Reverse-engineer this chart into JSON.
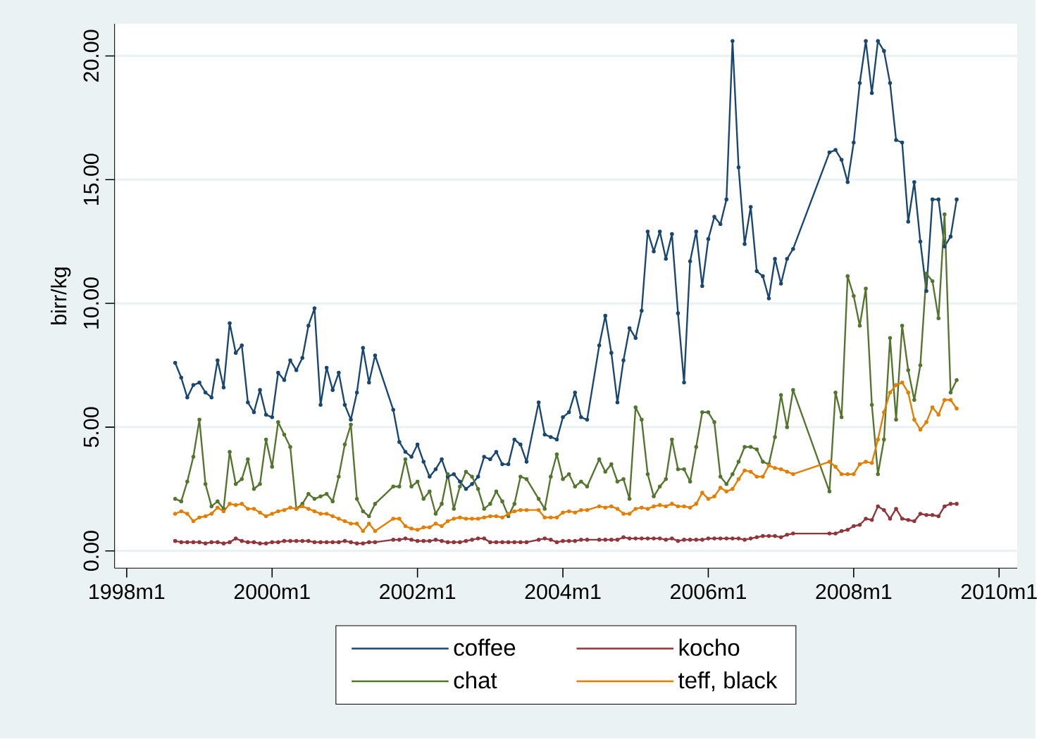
{
  "chart_data": {
    "type": "line",
    "ylabel": "birr/kg",
    "x": [
      "1998-09",
      "1998-10",
      "1998-11",
      "1998-12",
      "1999-01",
      "1999-02",
      "1999-03",
      "1999-04",
      "1999-05",
      "1999-06",
      "1999-07",
      "1999-08",
      "1999-09",
      "1999-10",
      "1999-11",
      "1999-12",
      "2000-01",
      "2000-02",
      "2000-03",
      "2000-04",
      "2000-05",
      "2000-06",
      "2000-07",
      "2000-08",
      "2000-09",
      "2000-10",
      "2000-11",
      "2000-12",
      "2001-01",
      "2001-02",
      "2001-03",
      "2001-04",
      "2001-05",
      "2001-06",
      "2001-09",
      "2001-10",
      "2001-11",
      "2001-12",
      "2002-01",
      "2002-02",
      "2002-03",
      "2002-04",
      "2002-05",
      "2002-06",
      "2002-07",
      "2002-08",
      "2002-09",
      "2002-10",
      "2002-11",
      "2002-12",
      "2003-01",
      "2003-02",
      "2003-03",
      "2003-04",
      "2003-05",
      "2003-06",
      "2003-07",
      "2003-09",
      "2003-10",
      "2003-11",
      "2003-12",
      "2004-01",
      "2004-02",
      "2004-03",
      "2004-04",
      "2004-05",
      "2004-07",
      "2004-08",
      "2004-09",
      "2004-10",
      "2004-11",
      "2004-12",
      "2005-01",
      "2005-02",
      "2005-03",
      "2005-04",
      "2005-05",
      "2005-06",
      "2005-07",
      "2005-08",
      "2005-09",
      "2005-10",
      "2005-11",
      "2005-12",
      "2006-01",
      "2006-02",
      "2006-03",
      "2006-04",
      "2006-05",
      "2006-06",
      "2006-07",
      "2006-08",
      "2006-09",
      "2006-10",
      "2006-11",
      "2006-12",
      "2007-01",
      "2007-02",
      "2007-03",
      "2007-09",
      "2007-10",
      "2007-11",
      "2007-12",
      "2008-01",
      "2008-02",
      "2008-03",
      "2008-04",
      "2008-05",
      "2008-06",
      "2008-07",
      "2008-08",
      "2008-09",
      "2008-10",
      "2008-11",
      "2008-12",
      "2009-01",
      "2009-02",
      "2009-03",
      "2009-04",
      "2009-05",
      "2009-06"
    ],
    "series": [
      {
        "name": "coffee",
        "color": "#1a476f",
        "values": [
          7.6,
          7.0,
          6.2,
          6.7,
          6.8,
          6.4,
          6.2,
          7.7,
          6.6,
          9.2,
          8.0,
          8.3,
          6.0,
          5.6,
          6.5,
          5.5,
          5.4,
          7.2,
          6.9,
          7.7,
          7.3,
          7.8,
          9.1,
          9.8,
          5.9,
          7.4,
          6.5,
          7.2,
          5.9,
          5.3,
          6.4,
          8.2,
          6.8,
          7.9,
          5.7,
          4.4,
          4.0,
          3.8,
          4.3,
          3.6,
          3.0,
          3.3,
          3.7,
          3.0,
          3.1,
          2.8,
          2.5,
          2.7,
          3.0,
          3.8,
          3.7,
          4.0,
          3.5,
          3.5,
          4.5,
          4.3,
          3.6,
          6.0,
          4.7,
          4.6,
          4.5,
          5.4,
          5.6,
          6.4,
          5.4,
          5.3,
          8.3,
          9.5,
          8.0,
          6.0,
          7.7,
          9.0,
          8.6,
          9.7,
          12.9,
          12.1,
          12.9,
          11.8,
          12.8,
          9.6,
          6.8,
          11.7,
          12.9,
          10.7,
          12.6,
          13.5,
          13.2,
          14.2,
          20.6,
          15.5,
          12.4,
          13.9,
          11.3,
          11.1,
          10.2,
          11.8,
          10.8,
          11.8,
          12.2,
          16.1,
          16.2,
          15.8,
          14.9,
          16.5,
          18.9,
          20.6,
          18.5,
          20.6,
          20.2,
          18.9,
          16.6,
          16.5,
          13.3,
          14.9,
          12.5,
          10.5,
          14.2,
          14.2,
          12.3,
          12.7,
          14.2
        ]
      },
      {
        "name": "kocho",
        "color": "#90353b",
        "values": [
          0.4,
          0.35,
          0.35,
          0.35,
          0.35,
          0.3,
          0.35,
          0.35,
          0.3,
          0.35,
          0.5,
          0.4,
          0.35,
          0.35,
          0.3,
          0.3,
          0.35,
          0.35,
          0.4,
          0.4,
          0.4,
          0.4,
          0.4,
          0.35,
          0.35,
          0.35,
          0.35,
          0.35,
          0.4,
          0.35,
          0.3,
          0.3,
          0.35,
          0.35,
          0.45,
          0.45,
          0.5,
          0.45,
          0.4,
          0.4,
          0.4,
          0.45,
          0.4,
          0.35,
          0.35,
          0.35,
          0.4,
          0.45,
          0.5,
          0.5,
          0.35,
          0.35,
          0.35,
          0.35,
          0.35,
          0.35,
          0.35,
          0.45,
          0.5,
          0.45,
          0.35,
          0.4,
          0.4,
          0.4,
          0.45,
          0.45,
          0.45,
          0.45,
          0.45,
          0.45,
          0.55,
          0.5,
          0.5,
          0.5,
          0.5,
          0.5,
          0.5,
          0.45,
          0.5,
          0.4,
          0.45,
          0.45,
          0.45,
          0.45,
          0.5,
          0.5,
          0.5,
          0.5,
          0.5,
          0.5,
          0.45,
          0.5,
          0.55,
          0.6,
          0.6,
          0.6,
          0.55,
          0.65,
          0.7,
          0.7,
          0.7,
          0.8,
          0.85,
          1.0,
          1.05,
          1.3,
          1.25,
          1.8,
          1.65,
          1.3,
          1.7,
          1.3,
          1.25,
          1.2,
          1.5,
          1.45,
          1.45,
          1.4,
          1.8,
          1.9,
          1.9
        ]
      },
      {
        "name": "chat",
        "color": "#55752f",
        "values": [
          2.1,
          2.0,
          2.8,
          3.8,
          5.3,
          2.7,
          1.8,
          2.0,
          1.7,
          4.0,
          2.7,
          2.9,
          3.7,
          2.5,
          2.7,
          4.5,
          3.4,
          5.2,
          4.7,
          4.2,
          1.7,
          1.9,
          2.3,
          2.1,
          2.2,
          2.3,
          2.0,
          3.0,
          4.3,
          5.1,
          2.1,
          1.6,
          1.4,
          1.9,
          2.6,
          2.6,
          3.7,
          2.6,
          2.8,
          2.1,
          2.4,
          1.5,
          1.9,
          3.1,
          1.7,
          2.6,
          3.2,
          3.0,
          2.5,
          1.7,
          1.9,
          2.4,
          2.0,
          1.4,
          1.9,
          3.0,
          2.9,
          2.1,
          1.7,
          3.0,
          3.9,
          2.9,
          3.1,
          2.6,
          2.8,
          2.6,
          3.7,
          3.2,
          3.5,
          2.8,
          2.9,
          2.1,
          5.8,
          5.3,
          3.1,
          2.2,
          2.6,
          2.9,
          4.5,
          3.3,
          3.3,
          2.8,
          4.2,
          5.6,
          5.6,
          5.2,
          3.0,
          2.7,
          3.1,
          3.6,
          4.2,
          4.2,
          4.1,
          3.6,
          3.5,
          4.6,
          6.3,
          5.0,
          6.5,
          2.4,
          6.4,
          5.4,
          11.1,
          10.3,
          9.1,
          10.6,
          5.9,
          3.1,
          4.5,
          8.6,
          5.3,
          9.1,
          7.3,
          6.1,
          7.5,
          11.2,
          10.9,
          9.4,
          13.6,
          6.4,
          6.9
        ]
      },
      {
        "name": "teff, black",
        "color": "#e37e00",
        "values": [
          1.5,
          1.6,
          1.5,
          1.2,
          1.35,
          1.4,
          1.5,
          1.75,
          1.6,
          1.9,
          1.85,
          1.9,
          1.7,
          1.7,
          1.55,
          1.4,
          1.5,
          1.6,
          1.65,
          1.75,
          1.7,
          1.8,
          1.7,
          1.6,
          1.5,
          1.5,
          1.4,
          1.3,
          1.2,
          1.1,
          1.1,
          0.8,
          1.1,
          0.8,
          1.3,
          1.3,
          1.0,
          0.9,
          0.85,
          0.95,
          0.95,
          1.1,
          1.0,
          1.2,
          1.3,
          1.35,
          1.3,
          1.3,
          1.3,
          1.35,
          1.4,
          1.4,
          1.35,
          1.5,
          1.6,
          1.65,
          1.65,
          1.65,
          1.35,
          1.35,
          1.35,
          1.55,
          1.6,
          1.55,
          1.65,
          1.65,
          1.8,
          1.75,
          1.8,
          1.7,
          1.5,
          1.5,
          1.7,
          1.75,
          1.7,
          1.8,
          1.85,
          1.8,
          1.9,
          1.8,
          1.8,
          1.75,
          1.9,
          2.35,
          2.1,
          2.2,
          2.55,
          2.4,
          2.5,
          2.9,
          3.25,
          3.2,
          3.0,
          3.0,
          3.45,
          3.35,
          3.3,
          3.2,
          3.1,
          3.6,
          3.4,
          3.1,
          3.1,
          3.1,
          3.5,
          3.6,
          3.55,
          4.5,
          5.6,
          6.4,
          6.7,
          6.8,
          6.4,
          5.3,
          4.9,
          5.2,
          5.8,
          5.5,
          6.1,
          6.1,
          5.75
        ]
      }
    ],
    "xlim": [
      "1997-11",
      "2010-04"
    ],
    "xticks": [
      {
        "value": "1998-01",
        "label": "1998m1"
      },
      {
        "value": "2000-01",
        "label": "2000m1"
      },
      {
        "value": "2002-01",
        "label": "2002m1"
      },
      {
        "value": "2004-01",
        "label": "2004m1"
      },
      {
        "value": "2006-01",
        "label": "2006m1"
      },
      {
        "value": "2008-01",
        "label": "2008m1"
      },
      {
        "value": "2010-01",
        "label": "2010m1"
      }
    ],
    "ylim": [
      -0.7,
      21.3
    ],
    "yticks": [
      {
        "value": 0,
        "label": "0.00"
      },
      {
        "value": 5,
        "label": "5.00"
      },
      {
        "value": 10,
        "label": "10.00"
      },
      {
        "value": 15,
        "label": "15.00"
      },
      {
        "value": 20,
        "label": "20.00"
      }
    ],
    "grid": "y",
    "legend": "bottom",
    "marker": "circle",
    "line_style": "solid"
  }
}
